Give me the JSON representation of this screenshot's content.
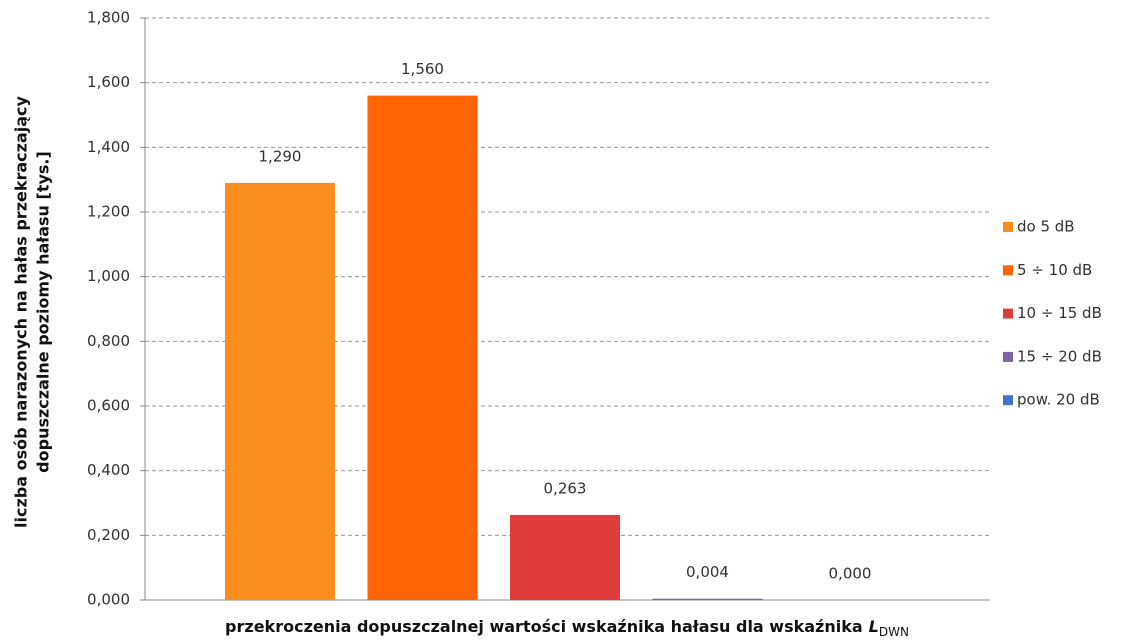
{
  "chart_data": {
    "type": "bar",
    "y_label": [
      "liczba osób narazonych na hałas przekraczający",
      "dopuszczalne poziomy hałasu [tys.]"
    ],
    "x_label": "przekroczenia dopuszczalnej wartości wskaźnika hałasu dla wskaźnika",
    "x_label_symbol": "L",
    "x_label_subscript": "DWN",
    "categories": [
      null
    ],
    "series": [
      {
        "name": "do 5 dB",
        "color": "#f98e1f",
        "values": [
          1.29
        ],
        "value_labels": [
          "1,290"
        ]
      },
      {
        "name": "5 ÷ 10 dB",
        "color": "#ff6303",
        "values": [
          1.56
        ],
        "value_labels": [
          "1,560"
        ]
      },
      {
        "name": "10 ÷ 15 dB",
        "color": "#e03c3c",
        "values": [
          0.263
        ],
        "value_labels": [
          "0,263"
        ]
      },
      {
        "name": "15 ÷ 20 dB",
        "color": "#8064a2",
        "values": [
          0.004
        ],
        "value_labels": [
          "0,004"
        ]
      },
      {
        "name": "pow.  20 dB",
        "color": "#4472c4",
        "values": [
          0
        ],
        "value_labels": [
          "0,000"
        ]
      }
    ],
    "ylim": [
      0,
      1.8
    ],
    "yticks": [
      {
        "value": 0,
        "label": "0,000"
      },
      {
        "value": 0.2,
        "label": "0,200"
      },
      {
        "value": 0.4,
        "label": "0,400"
      },
      {
        "value": 0.6,
        "label": "0,600"
      },
      {
        "value": 0.8,
        "label": "0,800"
      },
      {
        "value": 1,
        "label": "1,000"
      },
      {
        "value": 1.2,
        "label": "1,200"
      },
      {
        "value": 1.4,
        "label": "1,400"
      },
      {
        "value": 1.6,
        "label": "1,600"
      },
      {
        "value": 1.8,
        "label": "1,800"
      }
    ],
    "grid": true,
    "legend": "right"
  }
}
